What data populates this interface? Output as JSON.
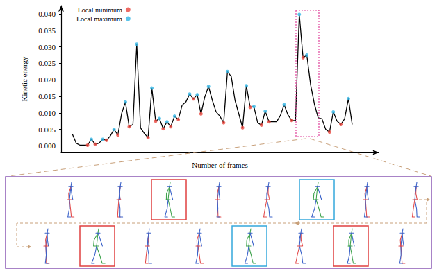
{
  "chart_data": {
    "type": "line",
    "xlabel": "Number of frames",
    "ylabel": "Kinetic energy",
    "xlim": [
      -2,
      82
    ],
    "ylim": [
      -0.002,
      0.0425
    ],
    "yticks": [
      {
        "value": 0,
        "label": "0.000"
      },
      {
        "value": 0.005,
        "label": "0.005"
      },
      {
        "value": 0.01,
        "label": "0.010"
      },
      {
        "value": 0.015,
        "label": "0.015"
      },
      {
        "value": 0.02,
        "label": "0.020"
      },
      {
        "value": 0.025,
        "label": "0.025"
      },
      {
        "value": 0.03,
        "label": "0.030"
      },
      {
        "value": 0.035,
        "label": "0.035"
      },
      {
        "value": 0.04,
        "label": "0.040"
      }
    ],
    "grid": false,
    "legend": "top-left",
    "tick_labels": "y",
    "series": [
      {
        "type": "line",
        "color": "#000000",
        "x": [
          1,
          2,
          3,
          4,
          5,
          6,
          7,
          8,
          9,
          10,
          11,
          12,
          13,
          14,
          15,
          16,
          17,
          18,
          19,
          20,
          21,
          22,
          23,
          24,
          25,
          26,
          27,
          28,
          29,
          30,
          31,
          32,
          33,
          34,
          35,
          36,
          37,
          38,
          39,
          40,
          41,
          42,
          43,
          44,
          45,
          46,
          47,
          48,
          49,
          50,
          51,
          52,
          53,
          54,
          55,
          56,
          57,
          58,
          59,
          60,
          61,
          62,
          63,
          64,
          65,
          66,
          67,
          68,
          69,
          70,
          71,
          72,
          73,
          74,
          75
        ],
        "values": [
          0.0035,
          0.0008,
          0.0002,
          0.0002,
          0.0002,
          0.002,
          0.0005,
          0.0008,
          0.002,
          0.0017,
          0.003,
          0.005,
          0.0033,
          0.0098,
          0.0133,
          0.0058,
          0.0065,
          0.0308,
          0.0055,
          0.0038,
          0.0025,
          0.0175,
          0.0075,
          0.0083,
          0.0052,
          0.0073,
          0.0058,
          0.009,
          0.008,
          0.0123,
          0.0133,
          0.0157,
          0.0142,
          0.0155,
          0.0097,
          0.0148,
          0.018,
          0.0138,
          0.0103,
          0.009,
          0.007,
          0.0225,
          0.021,
          0.0138,
          0.0097,
          0.0055,
          0.0182,
          0.0117,
          0.0119,
          0.007,
          0.0063,
          0.0105,
          0.0073,
          0.0073,
          0.0073,
          0.0092,
          0.0125,
          0.0094,
          0.0077,
          0.0077,
          0.0398,
          0.0267,
          0.0275,
          0.0185,
          0.0127,
          0.0085,
          0.0082,
          0.005,
          0.0042,
          0.0103,
          0.0075,
          0.0065,
          0.0082,
          0.0143,
          0.0065
        ]
      },
      {
        "name": "Local minimum",
        "type": "scatter",
        "marker": "circle",
        "color": "#e8453c",
        "x": [
          5,
          7,
          10,
          13,
          16,
          21,
          23,
          25,
          27,
          29,
          33,
          35,
          41,
          46,
          48,
          51,
          53,
          59,
          62,
          69,
          72
        ],
        "values": [
          0.0002,
          0.0005,
          0.0017,
          0.0033,
          0.0058,
          0.0025,
          0.0075,
          0.0052,
          0.0058,
          0.008,
          0.0142,
          0.0097,
          0.007,
          0.0055,
          0.0117,
          0.0063,
          0.0073,
          0.0077,
          0.0267,
          0.0042,
          0.0065
        ]
      },
      {
        "name": "Local maximum",
        "type": "scatter",
        "marker": "circle",
        "color": "#33b5e5",
        "x": [
          6,
          9,
          12,
          15,
          18,
          22,
          24,
          26,
          28,
          32,
          34,
          37,
          42,
          47,
          49,
          52,
          57,
          61,
          63,
          70,
          74
        ],
        "values": [
          0.002,
          0.002,
          0.005,
          0.0133,
          0.0308,
          0.0175,
          0.0083,
          0.0073,
          0.009,
          0.0157,
          0.0155,
          0.018,
          0.0225,
          0.0182,
          0.0119,
          0.0105,
          0.0125,
          0.0398,
          0.0275,
          0.0103,
          0.0143
        ]
      }
    ]
  }
}
